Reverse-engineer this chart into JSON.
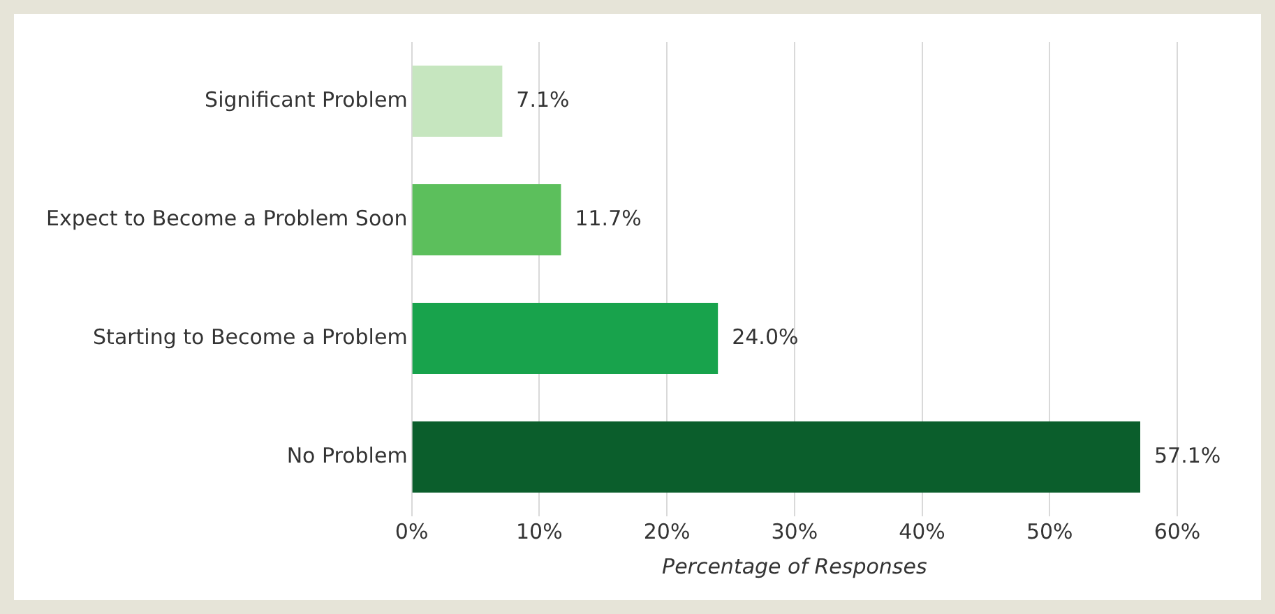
{
  "chart_data": {
    "type": "bar",
    "orientation": "horizontal",
    "xlabel": "Percentage of Responses",
    "categories": [
      "Significant Problem",
      "Expect to Become a Problem Soon",
      "Starting to Become a Problem",
      "No Problem"
    ],
    "values": [
      7.1,
      11.7,
      24.0,
      57.1
    ],
    "colors": [
      "#c6e6bf",
      "#5cbf5c",
      "#18a34c",
      "#0b5e2c"
    ],
    "value_labels": [
      "7.1%",
      "11.7%",
      "24.0%",
      "57.1%"
    ],
    "xlim": [
      0,
      60
    ],
    "xticks": [
      {
        "value": 0,
        "label": "0%"
      },
      {
        "value": 10,
        "label": "10%"
      },
      {
        "value": 20,
        "label": "20%"
      },
      {
        "value": 30,
        "label": "30%"
      },
      {
        "value": 40,
        "label": "40%"
      },
      {
        "value": 50,
        "label": "50%"
      },
      {
        "value": 60,
        "label": "60%"
      }
    ],
    "grid": "x",
    "legend": false
  }
}
